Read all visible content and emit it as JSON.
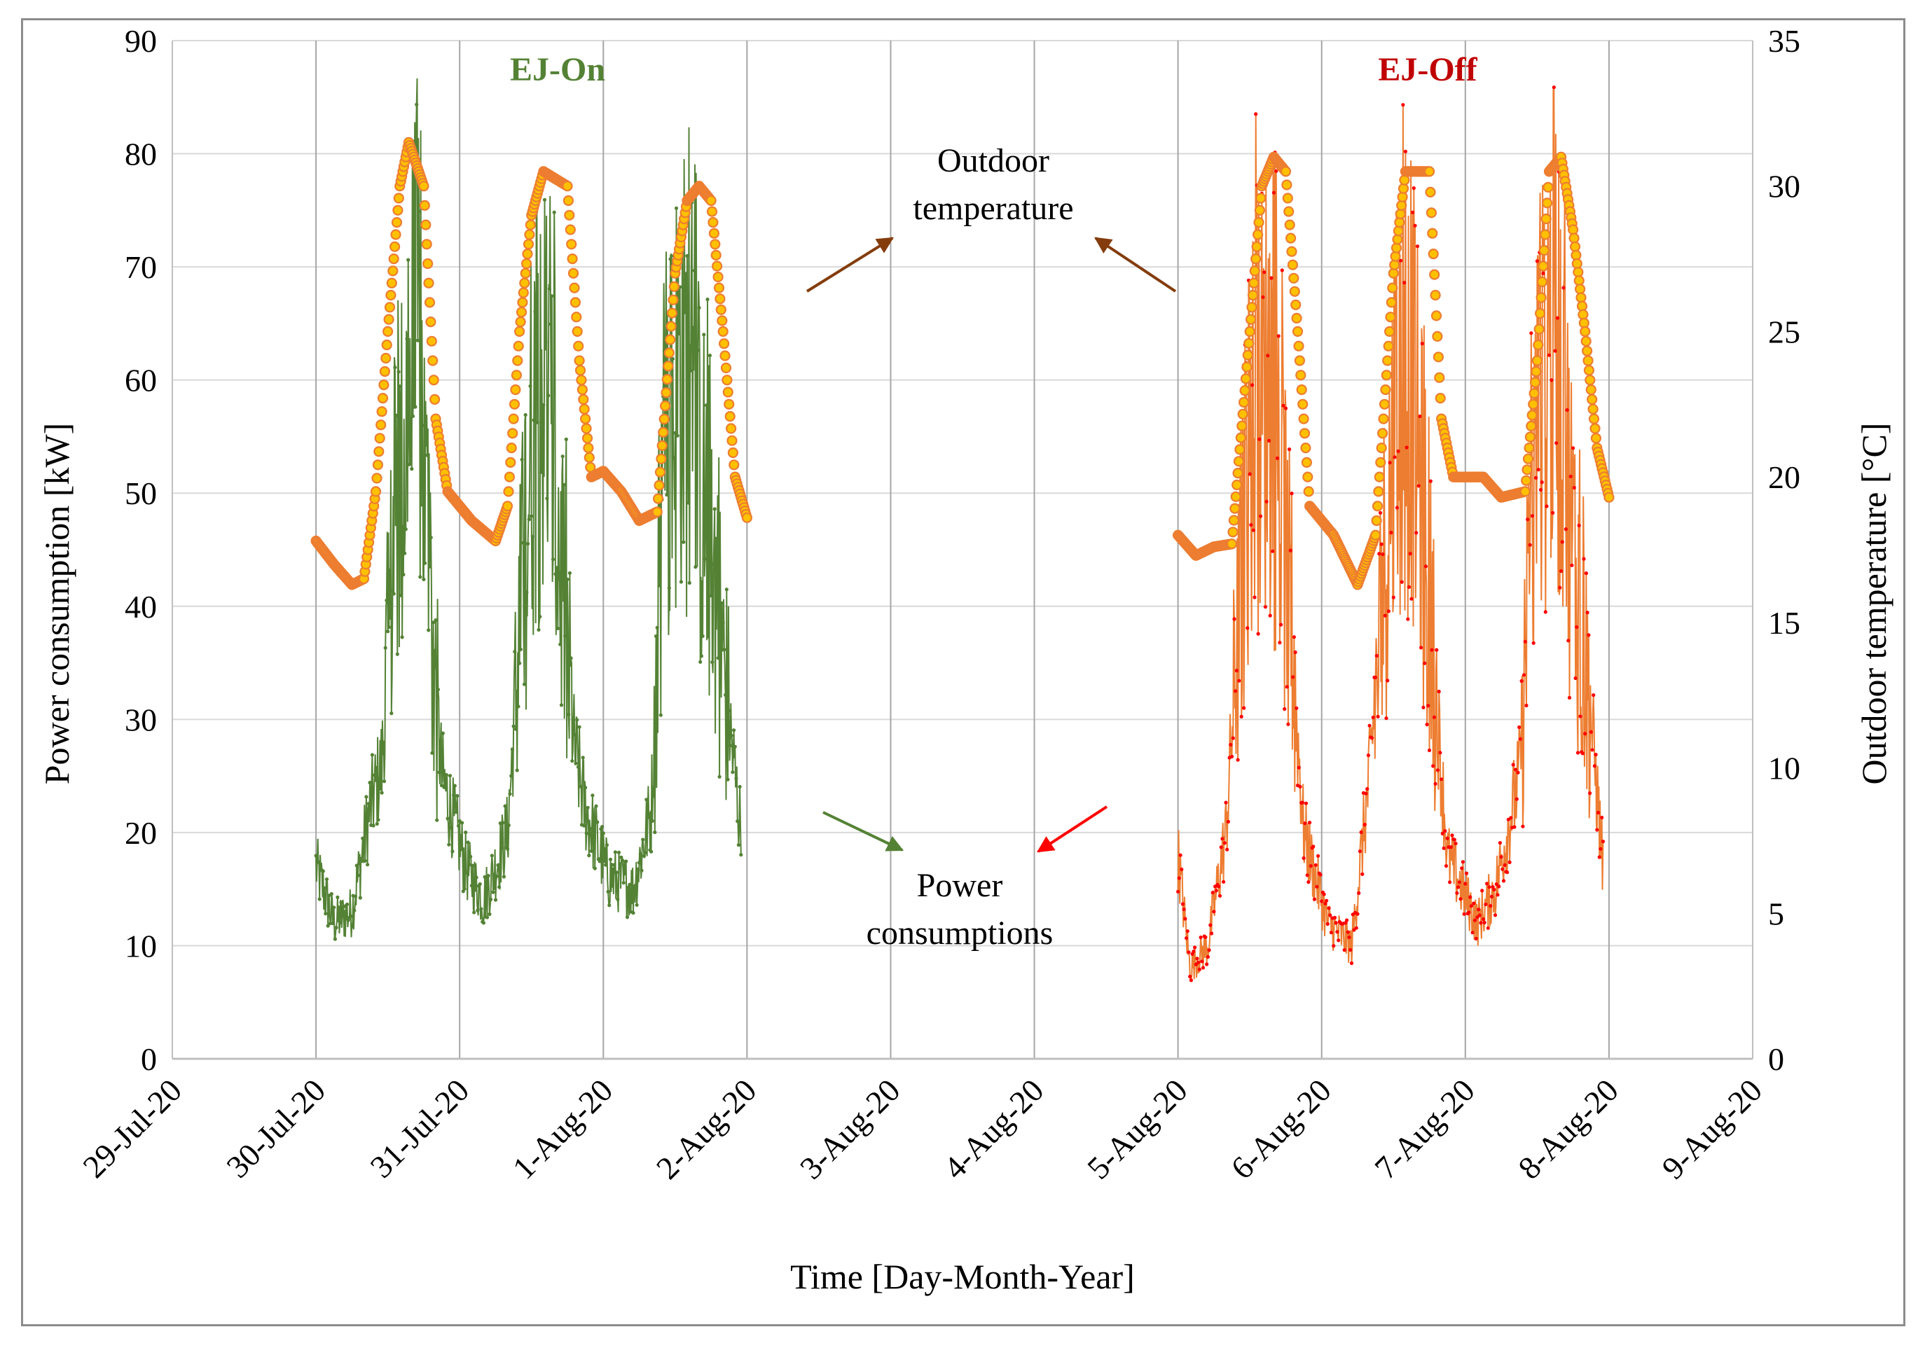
{
  "chart_data": {
    "type": "line",
    "x_axis": {
      "label": "Time [Day-Month-Year]",
      "range": [
        "2020-07-29",
        "2020-08-09"
      ],
      "tick_labels": [
        "29-Jul-20",
        "30-Jul-20",
        "31-Jul-20",
        "1-Aug-20",
        "2-Aug-20",
        "3-Aug-20",
        "4-Aug-20",
        "5-Aug-20",
        "6-Aug-20",
        "7-Aug-20",
        "8-Aug-20",
        "9-Aug-20"
      ],
      "grid": true
    },
    "y_axis_left": {
      "label": "Power consumption [kW]",
      "range": [
        0,
        90
      ],
      "ticks": [
        0,
        10,
        20,
        30,
        40,
        50,
        60,
        70,
        80,
        90
      ],
      "grid": true
    },
    "y_axis_right": {
      "label": "Outdoor temperature [°C]",
      "range": [
        0,
        35
      ],
      "ticks": [
        0,
        5,
        10,
        15,
        20,
        25,
        30,
        35
      ]
    },
    "periods": [
      {
        "label": "EJ-On",
        "color": "#548235",
        "start": "2020-07-30",
        "end": "2020-08-02"
      },
      {
        "label": "EJ-Off",
        "color": "#c00000",
        "start": "2020-08-05",
        "end": "2020-08-08"
      }
    ],
    "annotations": [
      {
        "text": [
          "Outdoor",
          "temperature"
        ]
      },
      {
        "text": [
          "Power",
          "consumptions"
        ]
      }
    ],
    "colors": {
      "ej_on_power": "#548235",
      "ej_off_power_line": "#ed7d31",
      "ej_off_power_marker": "#ff0000",
      "temperature_marker_fill": "#ffc000",
      "temperature_marker_edge": "#ed7d31"
    },
    "series": [
      {
        "axis": "right",
        "color": "#ed7d31",
        "temperature_points": [
          [
            "2020-07-30 00:00",
            17.8
          ],
          [
            "2020-07-30 03:00",
            17
          ],
          [
            "2020-07-30 06:00",
            16.3
          ],
          [
            "2020-07-30 08:00",
            16.5
          ],
          [
            "2020-07-30 10:00",
            19.5
          ],
          [
            "2020-07-30 12:00",
            25
          ],
          [
            "2020-07-30 14:00",
            30
          ],
          [
            "2020-07-30 15:30",
            31.5
          ],
          [
            "2020-07-30 18:00",
            30
          ],
          [
            "2020-07-30 20:00",
            22
          ],
          [
            "2020-07-30 22:00",
            19.5
          ],
          [
            "2020-07-31 02:00",
            18.5
          ],
          [
            "2020-07-31 06:00",
            17.8
          ],
          [
            "2020-07-31 08:00",
            19
          ],
          [
            "2020-07-31 10:00",
            25
          ],
          [
            "2020-07-31 12:00",
            29
          ],
          [
            "2020-07-31 14:00",
            30.5
          ],
          [
            "2020-07-31 18:00",
            30
          ],
          [
            "2020-07-31 20:00",
            24
          ],
          [
            "2020-07-31 22:00",
            20
          ],
          [
            "2020-08-01 00:00",
            20.2
          ],
          [
            "2020-08-01 03:00",
            19.5
          ],
          [
            "2020-08-01 06:00",
            18.5
          ],
          [
            "2020-08-01 09:00",
            18.8
          ],
          [
            "2020-08-01 12:00",
            27
          ],
          [
            "2020-08-01 14:00",
            29.5
          ],
          [
            "2020-08-01 16:00",
            30
          ],
          [
            "2020-08-01 18:00",
            29.5
          ],
          [
            "2020-08-01 20:00",
            25
          ],
          [
            "2020-08-01 22:00",
            20
          ],
          [
            "2020-08-02 00:00",
            18.6
          ],
          [
            "2020-08-05 00:00",
            18
          ],
          [
            "2020-08-05 03:00",
            17.3
          ],
          [
            "2020-08-05 06:00",
            17.6
          ],
          [
            "2020-08-05 09:00",
            17.7
          ],
          [
            "2020-08-05 12:00",
            25
          ],
          [
            "2020-08-05 14:00",
            30
          ],
          [
            "2020-08-05 16:00",
            31
          ],
          [
            "2020-08-05 18:00",
            30.5
          ],
          [
            "2020-08-05 20:00",
            25
          ],
          [
            "2020-08-05 22:00",
            19
          ],
          [
            "2020-08-06 02:00",
            18
          ],
          [
            "2020-08-06 06:00",
            16.3
          ],
          [
            "2020-08-06 09:00",
            18
          ],
          [
            "2020-08-06 12:00",
            27
          ],
          [
            "2020-08-06 14:00",
            30.5
          ],
          [
            "2020-08-06 18:00",
            30.5
          ],
          [
            "2020-08-06 20:00",
            22
          ],
          [
            "2020-08-06 22:00",
            20
          ],
          [
            "2020-08-07 03:00",
            20
          ],
          [
            "2020-08-07 06:00",
            19.3
          ],
          [
            "2020-08-07 10:00",
            19.5
          ],
          [
            "2020-08-07 12:00",
            24
          ],
          [
            "2020-08-07 14:00",
            30.5
          ],
          [
            "2020-08-07 16:00",
            31
          ],
          [
            "2020-08-07 18:00",
            28.5
          ],
          [
            "2020-08-07 20:00",
            25
          ],
          [
            "2020-08-07 22:00",
            21
          ],
          [
            "2020-08-08 00:00",
            19.3
          ]
        ]
      },
      {
        "axis": "left",
        "color": "#548235",
        "power_points": [
          [
            "2020-07-30 00:00",
            17
          ],
          [
            "2020-07-30 03:00",
            12
          ],
          [
            "2020-07-30 06:00",
            13
          ],
          [
            "2020-07-30 09:00",
            22
          ],
          [
            "2020-07-30 11:00",
            26
          ],
          [
            "2020-07-30 13:00",
            45
          ],
          [
            "2020-07-30 15:00",
            55
          ],
          [
            "2020-07-30 17:00",
            65
          ],
          [
            "2020-07-30 19:00",
            40
          ],
          [
            "2020-07-30 21:00",
            25
          ],
          [
            "2020-07-31 01:00",
            17
          ],
          [
            "2020-07-31 04:00",
            14
          ],
          [
            "2020-07-31 08:00",
            20
          ],
          [
            "2020-07-31 12:00",
            55
          ],
          [
            "2020-07-31 14:00",
            60
          ],
          [
            "2020-07-31 16:00",
            50
          ],
          [
            "2020-07-31 19:00",
            28
          ],
          [
            "2020-07-31 21:00",
            22
          ],
          [
            "2020-08-01 01:00",
            16
          ],
          [
            "2020-08-01 05:00",
            15
          ],
          [
            "2020-08-01 08:00",
            22
          ],
          [
            "2020-08-01 10:00",
            50
          ],
          [
            "2020-08-01 13:00",
            62
          ],
          [
            "2020-08-01 15:00",
            55
          ],
          [
            "2020-08-01 18:00",
            45
          ],
          [
            "2020-08-01 21:00",
            30
          ],
          [
            "2020-08-01 23:00",
            20
          ]
        ]
      },
      {
        "axis": "left",
        "color": "#ff0000",
        "power_points": [
          [
            "2020-08-05 00:00",
            18
          ],
          [
            "2020-08-05 02:00",
            8
          ],
          [
            "2020-08-05 05:00",
            10
          ],
          [
            "2020-08-05 08:00",
            20
          ],
          [
            "2020-08-05 12:00",
            55
          ],
          [
            "2020-08-05 15:00",
            60
          ],
          [
            "2020-08-05 18:00",
            45
          ],
          [
            "2020-08-05 21:00",
            20
          ],
          [
            "2020-08-06 01:00",
            12
          ],
          [
            "2020-08-06 05:00",
            10
          ],
          [
            "2020-08-06 08:00",
            25
          ],
          [
            "2020-08-06 12:00",
            55
          ],
          [
            "2020-08-06 15:00",
            60
          ],
          [
            "2020-08-06 18:00",
            40
          ],
          [
            "2020-08-06 21:00",
            18
          ],
          [
            "2020-08-07 02:00",
            12
          ],
          [
            "2020-08-07 05:00",
            15
          ],
          [
            "2020-08-07 09:00",
            25
          ],
          [
            "2020-08-07 12:00",
            55
          ],
          [
            "2020-08-07 15:00",
            65
          ],
          [
            "2020-08-07 18:00",
            45
          ],
          [
            "2020-08-07 21:00",
            30
          ],
          [
            "2020-08-07 23:00",
            17
          ]
        ]
      }
    ]
  }
}
